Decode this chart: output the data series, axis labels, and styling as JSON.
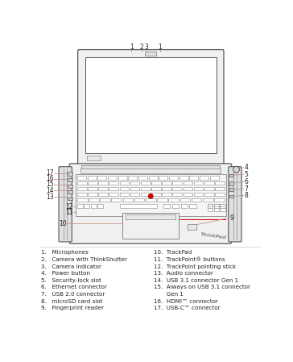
{
  "bg_color": "#ffffff",
  "line_color": "#888888",
  "dark_line": "#555555",
  "label_color": "#222222",
  "red_color": "#c8897a",
  "tp_red": "#cc0000",
  "legend_left": [
    "1.   Microphones",
    "2.   Camera with ThinkShutter",
    "3.   Camera indicator",
    "4.   Power button",
    "5.   Security-lock slot",
    "6.   Ethernet connector",
    "7.   USB 2.0 connector",
    "8.   microSD card slot",
    "9.   Fingerprint reader"
  ],
  "legend_right": [
    "10.  TrackPad",
    "11.  TrackPoint® buttons",
    "12.  TrackPoint pointing stick",
    "13.  Audio connector",
    "14.  USB 3.1 connector Gen 1",
    "15.  Always on USB 3.1 connector",
    "       Gen 1",
    "16.  HDMI™ connector",
    "17.  USB-C™ connector"
  ]
}
